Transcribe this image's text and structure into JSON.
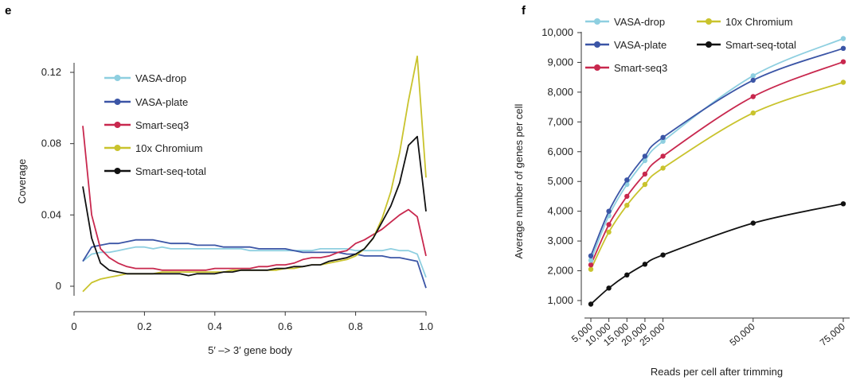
{
  "chart_data": [
    {
      "panel": "e",
      "type": "line",
      "title": "",
      "xlabel": "5′ –> 3′ gene body",
      "ylabel": "Coverage",
      "xlim": [
        0,
        1
      ],
      "ylim": [
        -0.006,
        0.125
      ],
      "xticks": [
        0,
        0.2,
        0.4,
        0.6,
        0.8,
        1.0
      ],
      "xtick_labels": [
        "0",
        "0.2",
        "0.4",
        "0.6",
        "0.8",
        "1.0"
      ],
      "yticks": [
        0,
        0.04,
        0.08,
        0.12
      ],
      "ytick_labels": [
        "0",
        "0.04",
        "0.08",
        "0.12"
      ],
      "legend_position": "upper-left",
      "x": [
        0.025,
        0.05,
        0.075,
        0.1,
        0.125,
        0.15,
        0.175,
        0.2,
        0.225,
        0.25,
        0.275,
        0.3,
        0.325,
        0.35,
        0.375,
        0.4,
        0.425,
        0.45,
        0.475,
        0.5,
        0.525,
        0.55,
        0.575,
        0.6,
        0.625,
        0.65,
        0.675,
        0.7,
        0.725,
        0.75,
        0.775,
        0.8,
        0.825,
        0.85,
        0.875,
        0.9,
        0.925,
        0.95,
        0.975,
        1.0
      ],
      "series": [
        {
          "name": "VASA-drop",
          "color": "#8ecfe0",
          "values": [
            0.014,
            0.018,
            0.019,
            0.019,
            0.02,
            0.021,
            0.022,
            0.022,
            0.021,
            0.022,
            0.021,
            0.021,
            0.021,
            0.021,
            0.021,
            0.021,
            0.021,
            0.021,
            0.021,
            0.02,
            0.02,
            0.02,
            0.02,
            0.02,
            0.02,
            0.02,
            0.02,
            0.021,
            0.021,
            0.021,
            0.021,
            0.02,
            0.02,
            0.02,
            0.02,
            0.021,
            0.02,
            0.02,
            0.018,
            0.005
          ]
        },
        {
          "name": "VASA-plate",
          "color": "#3b55a6",
          "values": [
            0.014,
            0.022,
            0.023,
            0.024,
            0.024,
            0.025,
            0.026,
            0.026,
            0.026,
            0.025,
            0.024,
            0.024,
            0.024,
            0.023,
            0.023,
            0.023,
            0.022,
            0.022,
            0.022,
            0.022,
            0.021,
            0.021,
            0.021,
            0.021,
            0.02,
            0.019,
            0.019,
            0.019,
            0.019,
            0.019,
            0.018,
            0.018,
            0.017,
            0.017,
            0.017,
            0.016,
            0.016,
            0.015,
            0.014,
            -0.001
          ]
        },
        {
          "name": "Smart-seq3",
          "color": "#c8284e",
          "values": [
            0.09,
            0.04,
            0.021,
            0.016,
            0.013,
            0.011,
            0.01,
            0.01,
            0.01,
            0.009,
            0.009,
            0.009,
            0.009,
            0.009,
            0.009,
            0.01,
            0.01,
            0.01,
            0.01,
            0.01,
            0.011,
            0.011,
            0.012,
            0.012,
            0.013,
            0.015,
            0.016,
            0.016,
            0.017,
            0.019,
            0.02,
            0.024,
            0.026,
            0.029,
            0.032,
            0.036,
            0.04,
            0.043,
            0.039,
            0.017
          ]
        },
        {
          "name": "10x Chromium",
          "color": "#c9c32d",
          "values": [
            -0.003,
            0.002,
            0.004,
            0.005,
            0.006,
            0.007,
            0.007,
            0.007,
            0.007,
            0.008,
            0.008,
            0.008,
            0.008,
            0.008,
            0.008,
            0.008,
            0.008,
            0.009,
            0.009,
            0.009,
            0.009,
            0.009,
            0.009,
            0.01,
            0.01,
            0.011,
            0.012,
            0.012,
            0.013,
            0.014,
            0.015,
            0.017,
            0.021,
            0.027,
            0.038,
            0.053,
            0.075,
            0.104,
            0.129,
            0.061
          ]
        },
        {
          "name": "Smart-seq-total",
          "color": "#111111",
          "values": [
            0.056,
            0.027,
            0.013,
            0.009,
            0.008,
            0.007,
            0.007,
            0.007,
            0.007,
            0.007,
            0.007,
            0.007,
            0.006,
            0.007,
            0.007,
            0.007,
            0.008,
            0.008,
            0.009,
            0.009,
            0.009,
            0.009,
            0.01,
            0.01,
            0.011,
            0.011,
            0.012,
            0.012,
            0.014,
            0.015,
            0.016,
            0.018,
            0.021,
            0.027,
            0.036,
            0.045,
            0.058,
            0.079,
            0.084,
            0.042
          ]
        }
      ]
    },
    {
      "panel": "f",
      "type": "line",
      "title": "",
      "xlabel": "Reads per cell after trimming",
      "ylabel": "Average number of genes per cell",
      "xlim": [
        3000,
        78000
      ],
      "ylim": [
        700,
        10300
      ],
      "xticks": [
        5000,
        10000,
        15000,
        20000,
        25000,
        50000,
        75000
      ],
      "xtick_labels": [
        "5,000",
        "10,000",
        "15,000",
        "20,000",
        "25,000",
        "50,000",
        "75,000"
      ],
      "yticks": [
        1000,
        2000,
        3000,
        4000,
        5000,
        6000,
        7000,
        8000,
        9000,
        10000
      ],
      "ytick_labels": [
        "1,000",
        "2,000",
        "3,000",
        "4,000",
        "5,000",
        "6,000",
        "7,000",
        "8,000",
        "9,000",
        "10,000"
      ],
      "legend_position": "top",
      "x": [
        5000,
        10000,
        15000,
        20000,
        25000,
        50000,
        75000
      ],
      "series": [
        {
          "name": "VASA-drop",
          "color": "#8ecfe0",
          "values": [
            2350,
            3850,
            4900,
            5700,
            6350,
            8550,
            9800
          ]
        },
        {
          "name": "10x Chromium",
          "color": "#c9c32d",
          "values": [
            2050,
            3300,
            4200,
            4900,
            5450,
            7300,
            8330
          ]
        },
        {
          "name": "VASA-plate",
          "color": "#3b55a6",
          "values": [
            2500,
            4000,
            5050,
            5850,
            6480,
            8400,
            9470
          ]
        },
        {
          "name": "Smart-seq-total",
          "color": "#111111",
          "values": [
            880,
            1420,
            1860,
            2220,
            2530,
            3600,
            4250
          ]
        },
        {
          "name": "Smart-seq3",
          "color": "#c8284e",
          "values": [
            2200,
            3550,
            4500,
            5250,
            5850,
            7850,
            9020
          ]
        }
      ]
    }
  ]
}
